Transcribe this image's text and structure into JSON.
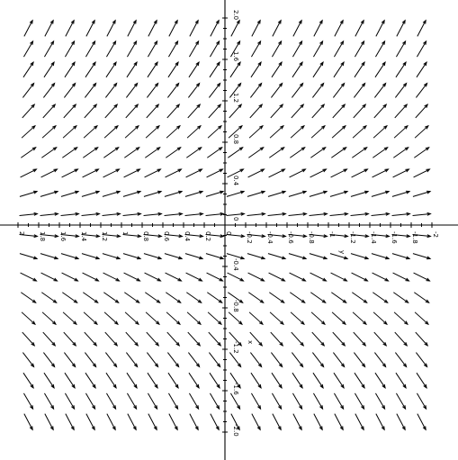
{
  "chart_data": {
    "type": "vector_field",
    "field": {
      "dx": "1",
      "dy": "y",
      "normalized_arrows": true
    },
    "x_range": [
      2.0,
      -2.0
    ],
    "y_range": [
      -2.0,
      2.0
    ],
    "x_grid_count": 20,
    "y_grid_count": 20,
    "x_axis_label": "x",
    "y_axis_label": "y",
    "x_ticks": [
      2,
      1.8,
      1.6,
      1.4,
      1.2,
      1,
      0.8,
      0.6,
      0.4,
      0.2,
      0,
      -0.2,
      -0.4,
      -0.6,
      -0.8,
      -1,
      -1.2,
      -1.4,
      -1.6,
      -1.8,
      -2
    ],
    "x_tick_labels": [
      "2",
      "1.8",
      "1.6",
      "1.4",
      "1.2",
      "1",
      "0.8",
      "0.6",
      "0.4",
      "0.2",
      "0",
      "-0.2",
      "-0.4",
      "-0.6",
      "-0.8",
      "-1",
      "-1.2",
      "-1.4",
      "-1.6",
      "-1.8",
      "-2"
    ],
    "y_ticks_upper": [
      2,
      1.6,
      1.2,
      0.8,
      0.4,
      0
    ],
    "y_tick_labels_upper": [
      "2.0",
      "1.6",
      "1.2",
      "0.8",
      "0.4",
      "0"
    ],
    "y_ticks_lower": [
      -0.4,
      -0.8,
      -1.2,
      -1.6,
      -2
    ],
    "y_tick_labels_lower": [
      "-0.4",
      "-0.8",
      "-1.2",
      "-1.6",
      "-2.0"
    ],
    "label_rotation": "90deg",
    "grid": false,
    "legend": "none"
  }
}
